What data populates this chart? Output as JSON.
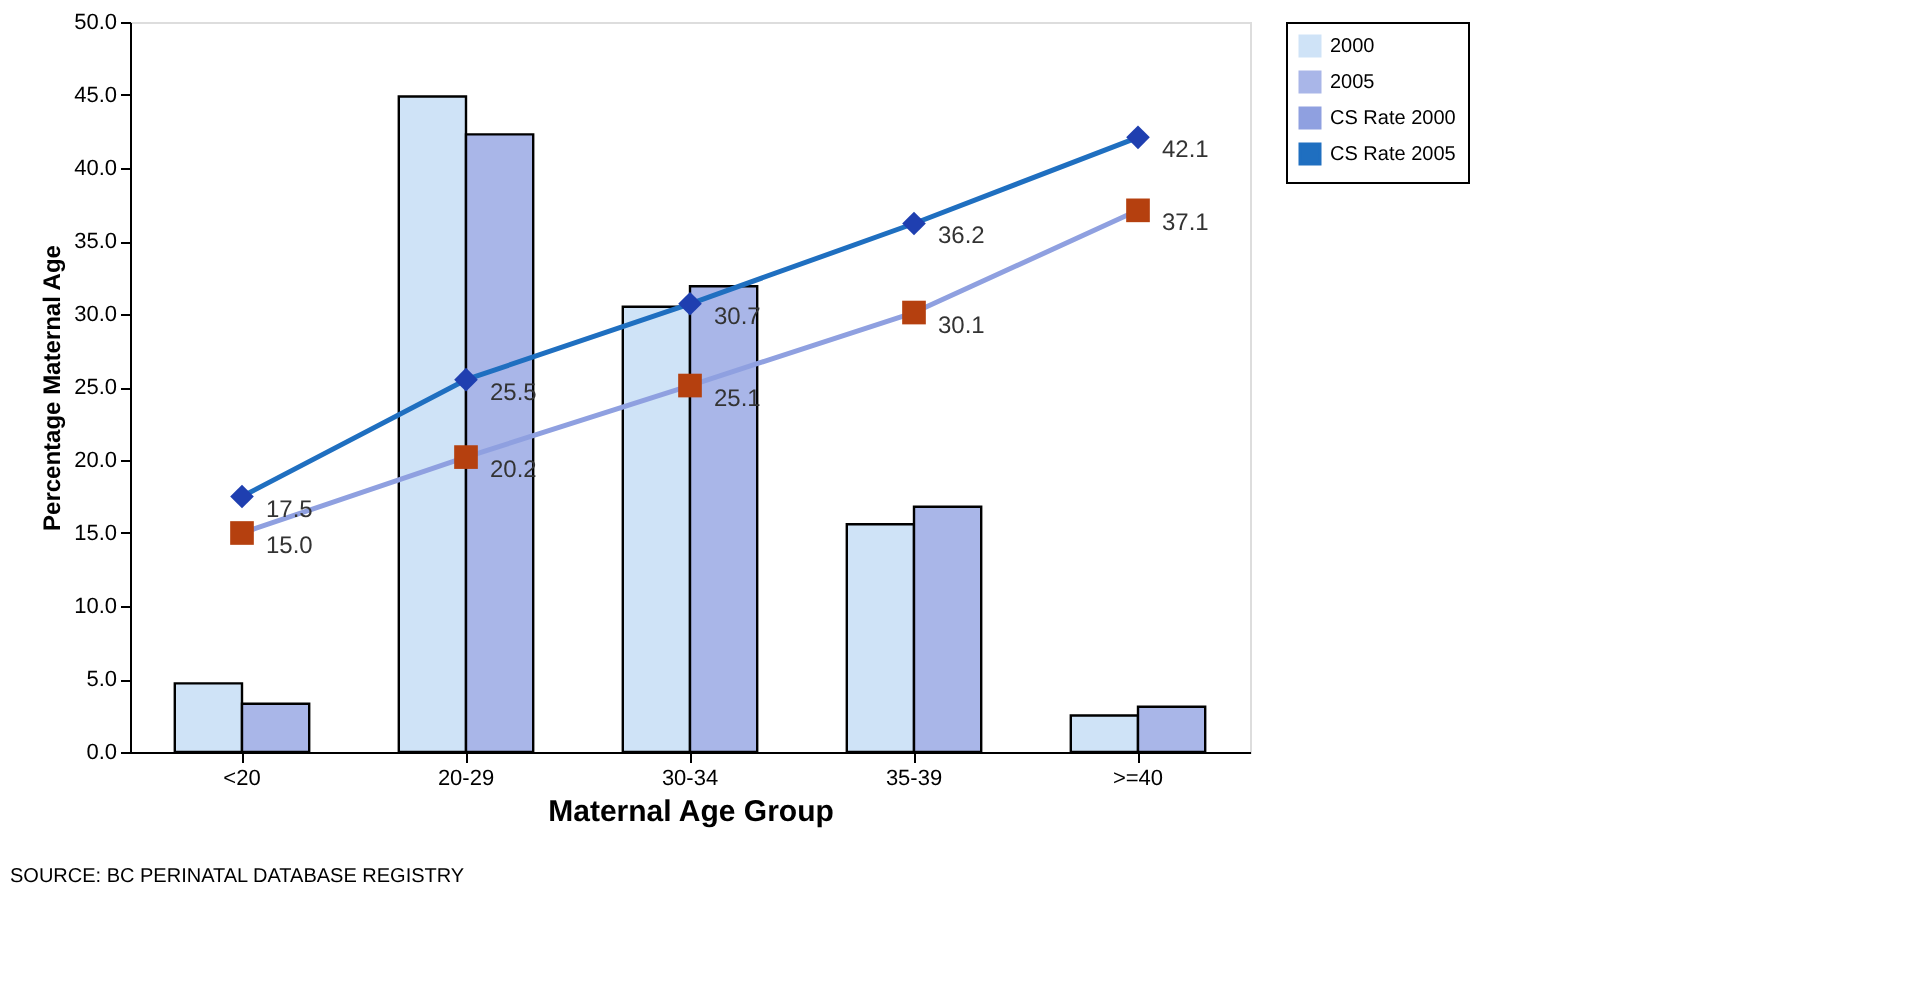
{
  "chart_data": {
    "type": "bar",
    "xlabel": "Maternal Age Group",
    "ylabel": "Percentage Maternal Age",
    "categories": [
      "<20",
      "20-29",
      "30-34",
      "35-39",
      ">=40"
    ],
    "series": [
      {
        "name": "2000",
        "color": "#cfe3f7",
        "values": [
          4.7,
          44.9,
          30.5,
          15.6,
          2.5
        ]
      },
      {
        "name": "2005",
        "color": "#a9b6e8",
        "values": [
          3.3,
          42.3,
          31.9,
          16.8,
          3.1
        ]
      },
      {
        "name": "CS Rate 2000",
        "type": "line",
        "color": "#8fa0e0",
        "marker": "square",
        "values": [
          15.0,
          20.2,
          25.1,
          30.1,
          37.1
        ],
        "value_labels": [
          "15.0",
          "20.2",
          "25.1",
          "30.1",
          "37.1"
        ]
      },
      {
        "name": "CS Rate 2005",
        "type": "line",
        "color": "#1f6fc0",
        "marker": "diamond",
        "values": [
          17.5,
          25.5,
          30.7,
          36.2,
          42.1
        ],
        "value_labels": [
          "17.5",
          "25.5",
          "30.7",
          "36.2",
          "42.1"
        ]
      }
    ],
    "ylim": [
      0,
      50
    ],
    "yticks": [
      {
        "value": 0,
        "label": "0.0"
      },
      {
        "value": 5,
        "label": "5.0"
      },
      {
        "value": 10,
        "label": "10.0"
      },
      {
        "value": 15,
        "label": "15.0"
      },
      {
        "value": 20,
        "label": "20.0"
      },
      {
        "value": 25,
        "label": "25.0"
      },
      {
        "value": 30,
        "label": "30.0"
      },
      {
        "value": 35,
        "label": "35.0"
      },
      {
        "value": 40,
        "label": "40.0"
      },
      {
        "value": 45,
        "label": "45.0"
      },
      {
        "value": 50,
        "label": "50.0"
      }
    ],
    "grid": false,
    "legend": "right",
    "annotations": [
      "SOURCE: BC PERINATAL DATABASE REGISTRY"
    ]
  }
}
